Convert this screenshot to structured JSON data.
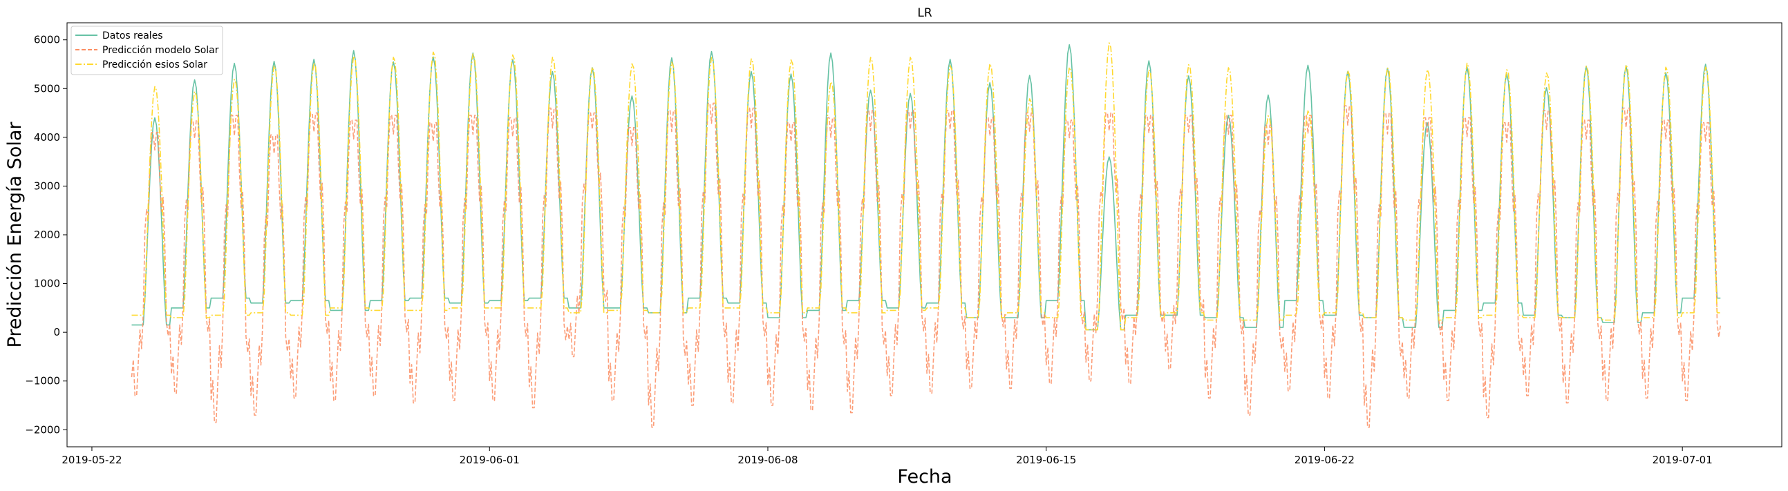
{
  "chart_data": {
    "type": "line",
    "title": "LR",
    "xlabel": "Fecha",
    "ylabel": "Predicción Energía Solar",
    "xlim": [
      "2019-05-21 09:00",
      "2019-07-03 12:00"
    ],
    "ylim": [
      -2350,
      6350
    ],
    "x_ticks": [
      "2019-05-22",
      "2019-06-01",
      "2019-06-08",
      "2019-06-15",
      "2019-06-22",
      "2019-07-01"
    ],
    "y_ticks": [
      -2000,
      -1000,
      0,
      1000,
      2000,
      3000,
      4000,
      5000,
      6000
    ],
    "grid": false,
    "legend_position": "top-left",
    "start_date": "2019-05-23",
    "num_days": 40,
    "series": [
      {
        "name": "Datos reales",
        "color": "#66c2a5",
        "style": "solid",
        "daily_peak": [
          4400,
          5180,
          5520,
          5560,
          5600,
          5780,
          5550,
          5650,
          5730,
          5600,
          5350,
          5430,
          4850,
          5630,
          5760,
          5350,
          5300,
          5730,
          4970,
          4900,
          5600,
          5120,
          5270,
          5900,
          3600,
          5570,
          5260,
          4450,
          4870,
          5480,
          5350,
          5420,
          4300,
          5440,
          5300,
          5020,
          5460,
          5470,
          5330,
          5500
        ],
        "daily_low": [
          150,
          500,
          700,
          600,
          650,
          450,
          650,
          700,
          600,
          650,
          700,
          500,
          500,
          400,
          700,
          600,
          300,
          450,
          650,
          500,
          600,
          300,
          300,
          650,
          50,
          350,
          350,
          300,
          100,
          650,
          350,
          300,
          100,
          450,
          600,
          350,
          300,
          200,
          400,
          700
        ]
      },
      {
        "name": "Predicción modelo Solar",
        "color": "#fc8d62",
        "style": "dashed",
        "daily_peak": [
          4100,
          4350,
          4450,
          4050,
          4500,
          4350,
          4450,
          4300,
          4450,
          4400,
          4600,
          4500,
          4200,
          4550,
          4700,
          4600,
          4300,
          4400,
          4550,
          4550,
          4550,
          4400,
          4500,
          4350,
          4500,
          4450,
          4450,
          4450,
          4250,
          4450,
          4650,
          4500,
          4400,
          4400,
          4300,
          4550,
          4350,
          4600,
          4350,
          4300
        ],
        "daily_low": [
          -1300,
          -1250,
          -1850,
          -1700,
          -1350,
          -1400,
          -1300,
          -1450,
          -1400,
          -1400,
          -1550,
          -500,
          -1400,
          -1950,
          -1500,
          -1450,
          -1500,
          -1600,
          -1650,
          -1300,
          -1250,
          -1150,
          -1150,
          -1050,
          -1000,
          -1050,
          -750,
          -1350,
          -1700,
          -1200,
          -1350,
          -1950,
          -1350,
          -1400,
          -1750,
          -1300,
          -1450,
          -1400,
          -1350,
          -1400
        ]
      },
      {
        "name": "Predicción esios Solar",
        "color": "#ffd92f",
        "style": "dashdot",
        "daily_peak": [
          5050,
          4950,
          5200,
          5480,
          5540,
          5680,
          5650,
          5760,
          5720,
          5700,
          5650,
          5450,
          5520,
          5550,
          5650,
          5620,
          5600,
          5150,
          5650,
          5650,
          5480,
          5520,
          4800,
          5450,
          5950,
          5400,
          5500,
          5440,
          4450,
          4550,
          5380,
          5440,
          5400,
          5530,
          5400,
          5330,
          5470,
          5500,
          5450,
          5450
        ],
        "daily_low": [
          350,
          300,
          350,
          400,
          350,
          500,
          450,
          450,
          500,
          500,
          500,
          400,
          450,
          400,
          500,
          500,
          400,
          500,
          400,
          450,
          500,
          300,
          400,
          300,
          50,
          300,
          400,
          250,
          250,
          350,
          400,
          300,
          250,
          300,
          350,
          300,
          300,
          250,
          300,
          400
        ]
      }
    ]
  }
}
